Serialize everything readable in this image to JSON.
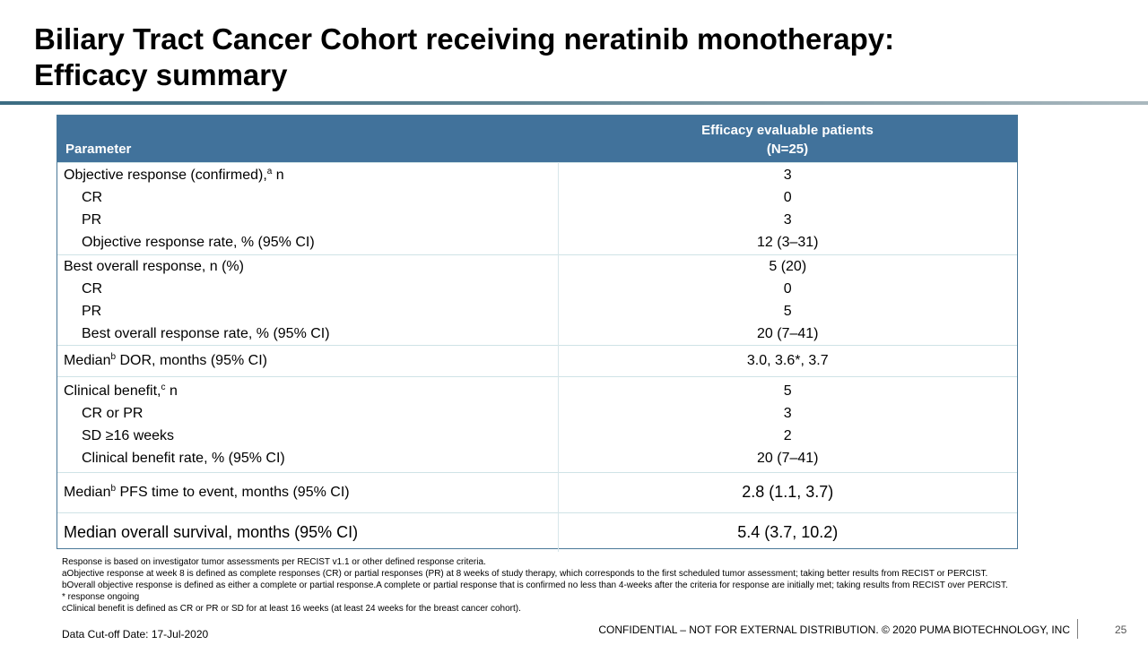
{
  "slide": {
    "title_line1": "Biliary Tract Cancer Cohort receiving neratinib monotherapy:",
    "title_line2": "Efficacy summary"
  },
  "table": {
    "header_param": "Parameter",
    "header_eff_line1": "Efficacy evaluable patients",
    "header_eff_line2": "(N=25)",
    "groups": [
      {
        "rows": [
          {
            "label": "Objective response (confirmed),",
            "sup": "a",
            "label_suffix": " n",
            "value": "3"
          },
          {
            "label": "CR",
            "value": "0"
          },
          {
            "label": "PR",
            "value": "3"
          },
          {
            "label": "Objective response rate, % (95% CI)",
            "value": "12 (3–31)"
          }
        ]
      },
      {
        "rows": [
          {
            "label": "Best overall response, n (%)",
            "value": "5 (20)"
          },
          {
            "label": "CR",
            "value": "0"
          },
          {
            "label": "PR",
            "value": "5"
          },
          {
            "label": "Best overall response rate, % (95% CI)",
            "value": "20 (7–41)"
          }
        ]
      },
      {
        "rows": [
          {
            "label_prefix": "Median",
            "sup": "b",
            "label": " DOR, months (95% CI)",
            "value": "3.0, 3.6*, 3.7"
          }
        ]
      },
      {
        "rows": [
          {
            "label": "Clinical benefit,",
            "sup": "c",
            "label_suffix": " n",
            "value": "5"
          },
          {
            "label": "CR or PR",
            "value": "3"
          },
          {
            "label": "SD ≥16 weeks",
            "value": "2"
          },
          {
            "label": "Clinical benefit rate, % (95% CI)",
            "value": "20 (7–41)"
          }
        ]
      },
      {
        "rows": [
          {
            "label_prefix": "Median",
            "sup": "b",
            "label": " PFS time to event, months (95% CI)",
            "value": "2.8 (1.1, 3.7)"
          }
        ]
      },
      {
        "rows": [
          {
            "label": "Median overall survival, months (95% CI)",
            "value": "5.4 (3.7, 10.2)"
          }
        ]
      }
    ]
  },
  "footnotes": [
    "Response is based on investigator tumor assessments per RECIST v1.1 or other defined response criteria.",
    "aObjective response at week 8 is defined as complete responses (CR) or partial responses (PR) at 8 weeks of study therapy, which corresponds to the first scheduled tumor assessment; taking better results from RECIST or PERCIST.",
    "bOverall objective response is defined as either a complete or partial response.A complete or partial response that is confirmed no less than 4-weeks after the criteria for response are initially met; taking results from RECIST over PERCIST.",
    "* response ongoing",
    "cClinical benefit is defined as CR or PR or SD for at least 16 weeks (at least 24 weeks for the breast cancer cohort)."
  ],
  "footer": {
    "cutoff": "Data Cut-off Date: 17-Jul-2020",
    "confidential": "CONFIDENTIAL – NOT FOR EXTERNAL DISTRIBUTION. © 2020 PUMA BIOTECHNOLOGY, INC",
    "page_number": "25"
  },
  "colors": {
    "header_bg": "#41729b",
    "table_border": "#4a7898",
    "row_divider": "#cfe3e6"
  }
}
